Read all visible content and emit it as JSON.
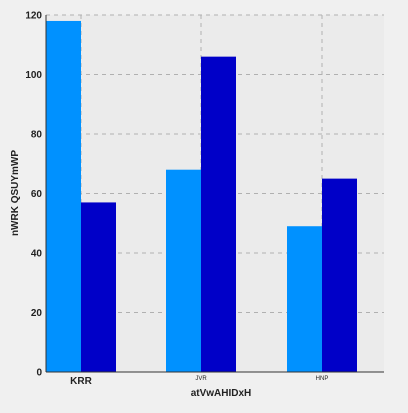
{
  "chart_data": {
    "type": "bar",
    "categories": [
      "KRR",
      "JVR",
      "HNP"
    ],
    "series": [
      {
        "values": [
          118,
          68,
          49
        ],
        "color": "#0091ff"
      },
      {
        "values": [
          57,
          106,
          65
        ],
        "color": "#0000c8"
      }
    ],
    "title": "",
    "xlabel": "atVwAHIDxH",
    "ylabel": "nWRK QSUYmWP",
    "ylim": [
      0,
      120
    ],
    "yticks": [
      0,
      20,
      40,
      60,
      80,
      100,
      120
    ],
    "grid": true,
    "legend": "none",
    "background": "#ebebeb",
    "grid_color": "#b0b0b0"
  }
}
